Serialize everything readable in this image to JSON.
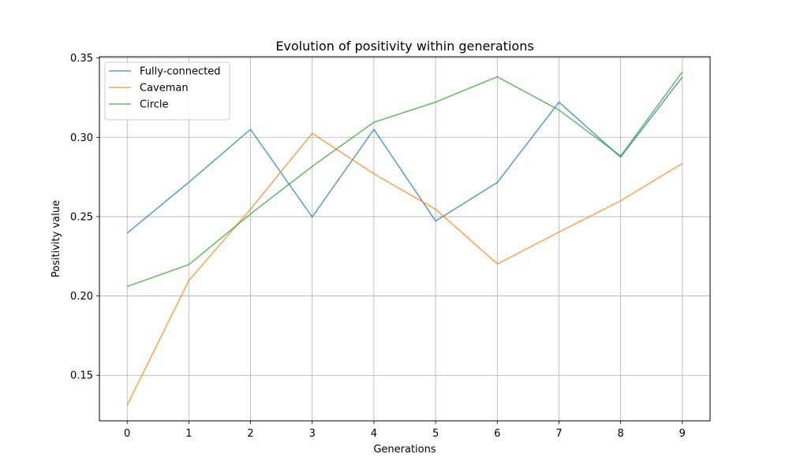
{
  "chart_data": {
    "type": "line",
    "title": "Evolution of positivity within generations",
    "xlabel": "Generations",
    "ylabel": "Positivity value",
    "x": [
      0,
      1,
      2,
      3,
      4,
      5,
      6,
      7,
      8,
      9
    ],
    "xlim": [
      -0.45,
      9.45
    ],
    "ylim": [
      0.1213,
      0.3508
    ],
    "yticks": [
      0.15,
      0.2,
      0.25,
      0.3,
      0.35
    ],
    "ytick_labels": [
      "0.15",
      "0.20",
      "0.25",
      "0.30",
      "0.35"
    ],
    "xtick_labels": [
      "0",
      "1",
      "2",
      "3",
      "4",
      "5",
      "6",
      "7",
      "8",
      "9"
    ],
    "grid": true,
    "legend_position": "upper-left",
    "series": [
      {
        "name": "Fully-connected",
        "color": "#1f77b4",
        "values": [
          0.2397,
          0.2717,
          0.305,
          0.2498,
          0.305,
          0.2473,
          0.2715,
          0.3222,
          0.2875,
          0.338
        ]
      },
      {
        "name": "Caveman",
        "color": "#ff7f0e",
        "values": [
          0.1312,
          0.2097,
          0.2547,
          0.3025,
          0.277,
          0.2547,
          0.2202,
          0.2402,
          0.26,
          0.2835
        ]
      },
      {
        "name": "Circle",
        "color": "#2ca02c",
        "values": [
          0.206,
          0.2198,
          0.2517,
          0.2817,
          0.3095,
          0.3222,
          0.3382,
          0.3172,
          0.2882,
          0.3412
        ]
      }
    ]
  }
}
